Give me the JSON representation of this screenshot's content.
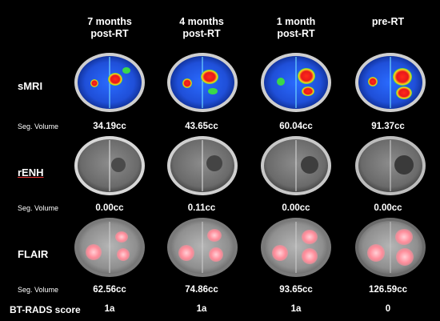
{
  "columns": [
    "7 months\npost-RT",
    "4 months\npost-RT",
    "1 month\npost-RT",
    "pre-RT"
  ],
  "rows": [
    {
      "label": "sMRI",
      "seg_label": "Seg. Volume",
      "volumes": [
        "34.19cc",
        "43.65cc",
        "60.04cc",
        "91.37cc"
      ]
    },
    {
      "label": "rENH",
      "seg_label": "Seg. Volume",
      "volumes": [
        "0.00cc",
        "0.11cc",
        "0.00cc",
        "0.00cc"
      ]
    },
    {
      "label": "FLAIR",
      "seg_label": "Seg. Volume",
      "volumes": [
        "62.56cc",
        "74.86cc",
        "93.65cc",
        "126.59cc"
      ]
    }
  ],
  "bt_rads": {
    "label": "BT-RADS score",
    "scores": [
      "1a",
      "1a",
      "1a",
      "0"
    ]
  },
  "colors": {
    "background": "#000000",
    "smri_base": "#1f4fd8",
    "tumor_red": "#e8171b",
    "flair_pink": "#ff8c9a"
  }
}
